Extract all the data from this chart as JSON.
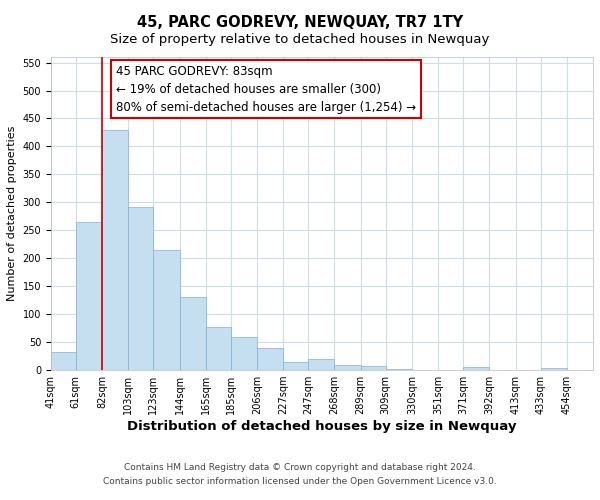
{
  "title": "45, PARC GODREVY, NEWQUAY, TR7 1TY",
  "subtitle": "Size of property relative to detached houses in Newquay",
  "xlabel": "Distribution of detached houses by size in Newquay",
  "ylabel": "Number of detached properties",
  "bar_left_edges": [
    41,
    61,
    82,
    103,
    123,
    144,
    165,
    185,
    206,
    227,
    247,
    268,
    289,
    309,
    330,
    351,
    371,
    392,
    413,
    433
  ],
  "bar_widths": [
    20,
    21,
    21,
    20,
    21,
    21,
    20,
    21,
    21,
    20,
    21,
    21,
    20,
    21,
    21,
    20,
    21,
    21,
    20,
    21
  ],
  "bar_heights": [
    32,
    265,
    430,
    292,
    215,
    130,
    77,
    60,
    40,
    15,
    20,
    10,
    7,
    2,
    1,
    0,
    5,
    0,
    0,
    4
  ],
  "bar_color": "#c6dff0",
  "bar_edge_color": "#7fb3d3",
  "vline_x": 82,
  "vline_color": "#cc0000",
  "ylim": [
    0,
    560
  ],
  "yticks": [
    0,
    50,
    100,
    150,
    200,
    250,
    300,
    350,
    400,
    450,
    500,
    550
  ],
  "xtick_labels": [
    "41sqm",
    "61sqm",
    "82sqm",
    "103sqm",
    "123sqm",
    "144sqm",
    "165sqm",
    "185sqm",
    "206sqm",
    "227sqm",
    "247sqm",
    "268sqm",
    "289sqm",
    "309sqm",
    "330sqm",
    "351sqm",
    "371sqm",
    "392sqm",
    "413sqm",
    "433sqm",
    "454sqm"
  ],
  "xtick_positions": [
    41,
    61,
    82,
    103,
    123,
    144,
    165,
    185,
    206,
    227,
    247,
    268,
    289,
    309,
    330,
    351,
    371,
    392,
    413,
    433,
    454
  ],
  "annotation_title": "45 PARC GODREVY: 83sqm",
  "annotation_line1": "← 19% of detached houses are smaller (300)",
  "annotation_line2": "80% of semi-detached houses are larger (1,254) →",
  "footer1": "Contains HM Land Registry data © Crown copyright and database right 2024.",
  "footer2": "Contains public sector information licensed under the Open Government Licence v3.0.",
  "bg_color": "#ffffff",
  "grid_color": "#d0dce8",
  "title_fontsize": 10.5,
  "subtitle_fontsize": 9.5,
  "xlabel_fontsize": 9.5,
  "ylabel_fontsize": 8,
  "tick_fontsize": 7,
  "ann_fontsize": 8.5,
  "footer_fontsize": 6.5
}
